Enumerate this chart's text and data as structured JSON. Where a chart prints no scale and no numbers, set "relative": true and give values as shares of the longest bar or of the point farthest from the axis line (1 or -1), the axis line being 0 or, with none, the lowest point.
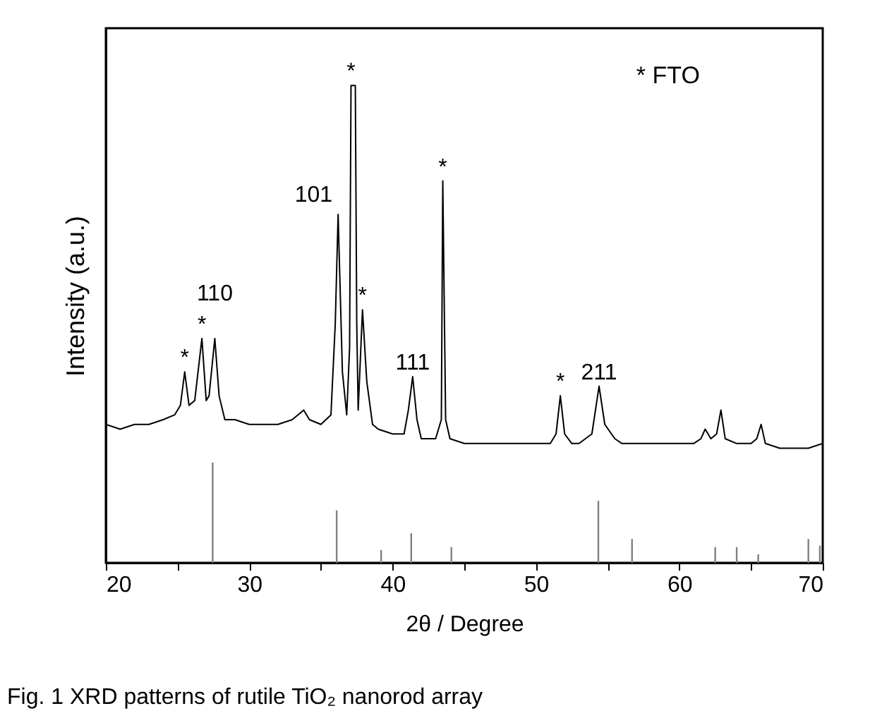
{
  "chart_data": {
    "type": "line",
    "relative": true,
    "xlabel": "2θ / Degree",
    "ylabel": "Intensity (a.u.)",
    "xlim": [
      20,
      70
    ],
    "xticks": [
      20,
      {
        "value": 25,
        "label": null
      },
      30,
      {
        "value": 35,
        "label": null
      },
      40,
      {
        "value": 45,
        "label": null
      },
      50,
      {
        "value": 55,
        "label": null
      },
      60,
      {
        "value": 65,
        "label": null
      },
      70
    ],
    "series": [
      {
        "color": "#000000",
        "x": [
          20,
          21,
          22,
          23,
          24,
          24.8,
          25.2,
          25.5,
          25.8,
          26.2,
          26.7,
          27.0,
          27.2,
          27.6,
          27.9,
          28.3,
          29,
          30,
          31,
          32,
          33,
          33.8,
          34.2,
          35,
          35.7,
          36.0,
          36.2,
          36.5,
          36.8,
          37.0,
          37.1,
          37.4,
          37.5,
          37.6,
          37.9,
          38.2,
          38.6,
          39,
          40,
          40.8,
          41.1,
          41.4,
          41.7,
          42,
          43,
          43.4,
          43.5,
          43.7,
          44,
          45,
          46,
          47,
          48,
          49,
          50,
          51,
          51.4,
          51.7,
          52.0,
          52.5,
          53,
          53.9,
          54.4,
          54.8,
          55.5,
          56,
          57,
          58,
          59,
          60,
          61,
          61.5,
          61.8,
          62.2,
          62.6,
          62.9,
          63.2,
          64,
          65,
          65.4,
          65.7,
          66,
          67,
          68,
          69,
          70
        ],
        "values": [
          0.29,
          0.28,
          0.29,
          0.29,
          0.3,
          0.31,
          0.33,
          0.4,
          0.33,
          0.34,
          0.47,
          0.34,
          0.35,
          0.47,
          0.35,
          0.3,
          0.3,
          0.29,
          0.29,
          0.29,
          0.3,
          0.32,
          0.3,
          0.29,
          0.31,
          0.5,
          0.73,
          0.4,
          0.31,
          0.45,
          1.0,
          1.0,
          0.5,
          0.32,
          0.53,
          0.38,
          0.29,
          0.28,
          0.27,
          0.27,
          0.32,
          0.39,
          0.3,
          0.26,
          0.26,
          0.3,
          0.8,
          0.3,
          0.26,
          0.25,
          0.25,
          0.25,
          0.25,
          0.25,
          0.25,
          0.25,
          0.27,
          0.35,
          0.27,
          0.25,
          0.25,
          0.27,
          0.37,
          0.29,
          0.26,
          0.25,
          0.25,
          0.25,
          0.25,
          0.25,
          0.25,
          0.26,
          0.28,
          0.26,
          0.27,
          0.32,
          0.26,
          0.25,
          0.25,
          0.26,
          0.29,
          0.25,
          0.24,
          0.24,
          0.24,
          0.25
        ]
      },
      {
        "type": "bar",
        "color": "#808080",
        "x": [
          27.45,
          36.1,
          39.2,
          41.3,
          44.1,
          54.35,
          56.7,
          62.5,
          64.0,
          65.5,
          69.0,
          69.8
        ],
        "values": [
          0.21,
          0.11,
          0.027,
          0.062,
          0.033,
          0.13,
          0.05,
          0.033,
          0.033,
          0.018,
          0.05,
          0.036
        ]
      }
    ],
    "annotations": [
      {
        "text": "*",
        "x": 25.5,
        "y": 0.4
      },
      {
        "text": "*",
        "x": 26.7,
        "y": 0.47
      },
      {
        "text": "*",
        "x": 37.1,
        "y": 1.0
      },
      {
        "text": "*",
        "x": 37.9,
        "y": 0.53
      },
      {
        "text": "*",
        "x": 43.5,
        "y": 0.8
      },
      {
        "text": "*",
        "x": 51.7,
        "y": 0.35
      },
      {
        "text": "110",
        "x": 27.6,
        "y": 0.47
      },
      {
        "text": "101",
        "x": 36.2,
        "y": 0.73
      },
      {
        "text": "111",
        "x": 41.4,
        "y": 0.39
      },
      {
        "text": "211",
        "x": 54.4,
        "y": 0.37
      },
      "*  FTO",
      "Fig. 1 XRD patterns of rutile TiO₂ nanorod array"
    ]
  }
}
